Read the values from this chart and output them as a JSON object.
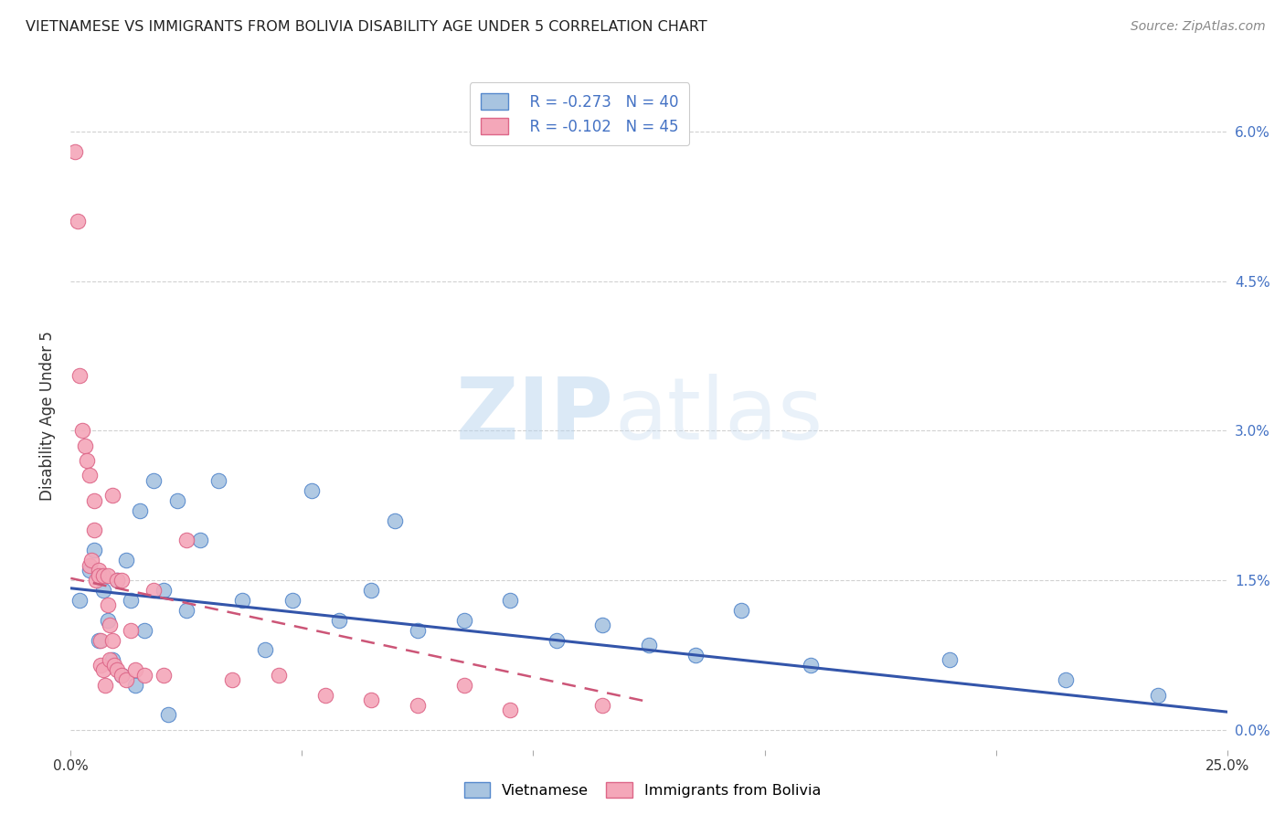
{
  "title": "VIETNAMESE VS IMMIGRANTS FROM BOLIVIA DISABILITY AGE UNDER 5 CORRELATION CHART",
  "source": "Source: ZipAtlas.com",
  "ylabel": "Disability Age Under 5",
  "ytick_vals": [
    0.0,
    1.5,
    3.0,
    4.5,
    6.0
  ],
  "xtick_vals": [
    0.0,
    5.0,
    10.0,
    15.0,
    20.0,
    25.0
  ],
  "xlim": [
    0.0,
    25.0
  ],
  "ylim": [
    -0.2,
    6.5
  ],
  "legend_r_blue": "R = -0.273",
  "legend_n_blue": "N = 40",
  "legend_r_pink": "R = -0.102",
  "legend_n_pink": "N = 45",
  "legend_label_blue": "Vietnamese",
  "legend_label_pink": "Immigrants from Bolivia",
  "watermark_zip": "ZIP",
  "watermark_atlas": "atlas",
  "blue_scatter_color": "#a8c4e0",
  "blue_edge_color": "#5588cc",
  "pink_scatter_color": "#f4a7b9",
  "pink_edge_color": "#dd6688",
  "blue_line_color": "#3355aa",
  "pink_line_color": "#cc5577",
  "right_axis_color": "#4472C4",
  "grid_color": "#cccccc",
  "background_color": "#ffffff",
  "scatter_blue": [
    [
      0.2,
      1.3
    ],
    [
      0.4,
      1.6
    ],
    [
      0.5,
      1.8
    ],
    [
      0.6,
      0.9
    ],
    [
      0.7,
      1.4
    ],
    [
      0.8,
      1.1
    ],
    [
      0.9,
      0.7
    ],
    [
      1.0,
      1.5
    ],
    [
      1.1,
      0.55
    ],
    [
      1.2,
      1.7
    ],
    [
      1.3,
      1.3
    ],
    [
      1.4,
      0.45
    ],
    [
      1.5,
      2.2
    ],
    [
      1.6,
      1.0
    ],
    [
      1.8,
      2.5
    ],
    [
      2.0,
      1.4
    ],
    [
      2.1,
      0.15
    ],
    [
      2.3,
      2.3
    ],
    [
      2.5,
      1.2
    ],
    [
      2.8,
      1.9
    ],
    [
      3.2,
      2.5
    ],
    [
      3.7,
      1.3
    ],
    [
      4.2,
      0.8
    ],
    [
      4.8,
      1.3
    ],
    [
      5.2,
      2.4
    ],
    [
      5.8,
      1.1
    ],
    [
      6.5,
      1.4
    ],
    [
      7.0,
      2.1
    ],
    [
      7.5,
      1.0
    ],
    [
      8.5,
      1.1
    ],
    [
      9.5,
      1.3
    ],
    [
      10.5,
      0.9
    ],
    [
      11.5,
      1.05
    ],
    [
      12.5,
      0.85
    ],
    [
      13.5,
      0.75
    ],
    [
      14.5,
      1.2
    ],
    [
      16.0,
      0.65
    ],
    [
      19.0,
      0.7
    ],
    [
      21.5,
      0.5
    ],
    [
      23.5,
      0.35
    ]
  ],
  "scatter_pink": [
    [
      0.1,
      5.8
    ],
    [
      0.15,
      5.1
    ],
    [
      0.2,
      3.55
    ],
    [
      0.25,
      3.0
    ],
    [
      0.3,
      2.85
    ],
    [
      0.35,
      2.7
    ],
    [
      0.4,
      2.55
    ],
    [
      0.4,
      1.65
    ],
    [
      0.45,
      1.7
    ],
    [
      0.5,
      2.0
    ],
    [
      0.5,
      2.3
    ],
    [
      0.55,
      1.5
    ],
    [
      0.6,
      1.6
    ],
    [
      0.6,
      1.55
    ],
    [
      0.65,
      0.65
    ],
    [
      0.65,
      0.9
    ],
    [
      0.7,
      1.55
    ],
    [
      0.7,
      0.6
    ],
    [
      0.75,
      0.45
    ],
    [
      0.8,
      1.55
    ],
    [
      0.8,
      1.25
    ],
    [
      0.85,
      1.05
    ],
    [
      0.85,
      0.7
    ],
    [
      0.9,
      0.9
    ],
    [
      0.9,
      2.35
    ],
    [
      0.95,
      0.65
    ],
    [
      1.0,
      1.5
    ],
    [
      1.0,
      0.6
    ],
    [
      1.1,
      1.5
    ],
    [
      1.1,
      0.55
    ],
    [
      1.2,
      0.5
    ],
    [
      1.3,
      1.0
    ],
    [
      1.4,
      0.6
    ],
    [
      1.6,
      0.55
    ],
    [
      1.8,
      1.4
    ],
    [
      2.0,
      0.55
    ],
    [
      2.5,
      1.9
    ],
    [
      3.5,
      0.5
    ],
    [
      4.5,
      0.55
    ],
    [
      5.5,
      0.35
    ],
    [
      6.5,
      0.3
    ],
    [
      7.5,
      0.25
    ],
    [
      8.5,
      0.45
    ],
    [
      9.5,
      0.2
    ],
    [
      11.5,
      0.25
    ]
  ],
  "trendline_blue": {
    "x_start": 0.0,
    "y_start": 1.42,
    "x_end": 25.0,
    "y_end": 0.18
  },
  "trendline_pink": {
    "x_start": 0.0,
    "y_start": 1.52,
    "x_end": 12.5,
    "y_end": 0.28
  }
}
